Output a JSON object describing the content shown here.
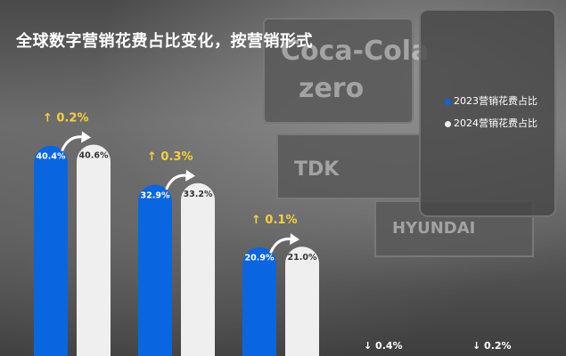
{
  "title": "全球数字营销花费占比变化，按营销形式",
  "legend": {
    "item_2023": "2023营销花费占比",
    "item_2024": "2024营销花费占比"
  },
  "colors": {
    "series_2023": "#0a66e0",
    "series_2024": "#efefef",
    "change_label": "#f2d33a"
  },
  "chart_data": {
    "type": "bar",
    "title": "全球数字营销花费占比变化，按营销形式",
    "categories": [
      "",
      "",
      "",
      "",
      ""
    ],
    "series": [
      {
        "name": "2023营销花费占比",
        "values": [
          40.4,
          32.9,
          20.9,
          null,
          null
        ]
      },
      {
        "name": "2024营销花费占比",
        "values": [
          40.6,
          33.2,
          21.0,
          null,
          null
        ]
      }
    ],
    "value_labels_2023": [
      "40.4%",
      "32.9%",
      "20.9%"
    ],
    "value_labels_2024": [
      "40.6%",
      "33.2%",
      "21.0%"
    ],
    "changes": [
      "↑ 0.2%",
      "↑ 0.3%",
      "↑ 0.1%",
      "↓ 0.4%",
      "↓ 0.2%"
    ],
    "ylim": [
      0,
      45
    ],
    "legend_position": "top-right",
    "grid": false
  }
}
